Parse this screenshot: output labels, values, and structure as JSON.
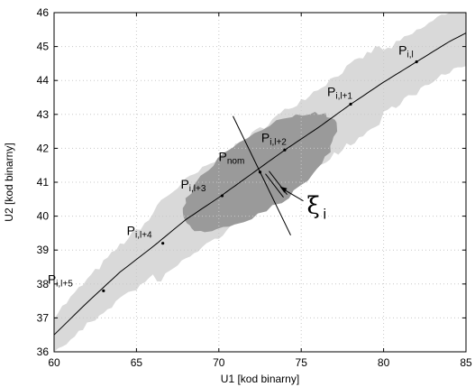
{
  "chart_data": {
    "type": "scatter",
    "xlabel": "U1 [kod binarny]",
    "ylabel": "U2 [kod binarny]",
    "xlim": [
      60,
      85
    ],
    "ylim": [
      36,
      46
    ],
    "xticks": [
      "60",
      "65",
      "70",
      "75",
      "80",
      "85"
    ],
    "yticks": [
      "36",
      "37",
      "38",
      "39",
      "40",
      "41",
      "42",
      "43",
      "44",
      "45",
      "46"
    ],
    "grid": true,
    "curve": {
      "x": [
        60,
        62,
        64,
        66,
        68,
        70,
        72,
        74,
        76,
        78,
        80,
        82,
        84,
        85
      ],
      "y": [
        36.5,
        37.45,
        38.35,
        39.1,
        39.9,
        40.55,
        41.25,
        41.95,
        42.6,
        43.3,
        43.95,
        44.55,
        45.15,
        45.4
      ]
    },
    "points": [
      {
        "label": "P",
        "sub": "i,l",
        "x": 82,
        "y": 44.55
      },
      {
        "label": "P",
        "sub": "i,l+1",
        "x": 78,
        "y": 43.3
      },
      {
        "label": "P",
        "sub": "i,l+2",
        "x": 74,
        "y": 41.95
      },
      {
        "label": "P",
        "sub": "i,l+3",
        "x": 70.2,
        "y": 40.6
      },
      {
        "label": "P",
        "sub": "i,l+4",
        "x": 66.6,
        "y": 39.2
      },
      {
        "label": "P",
        "sub": "i,l+5",
        "x": 63,
        "y": 37.8
      }
    ],
    "nominal": {
      "label": "P",
      "sub": "nom",
      "x": 72.5,
      "y": 41.3
    },
    "annotation": {
      "symbol": "ξ",
      "sub": "i"
    },
    "colors": {
      "outer_region": "#d9d9d9",
      "inner_region": "#9a9a9a",
      "grid": "#c8c8c8",
      "line": "#000000"
    }
  }
}
